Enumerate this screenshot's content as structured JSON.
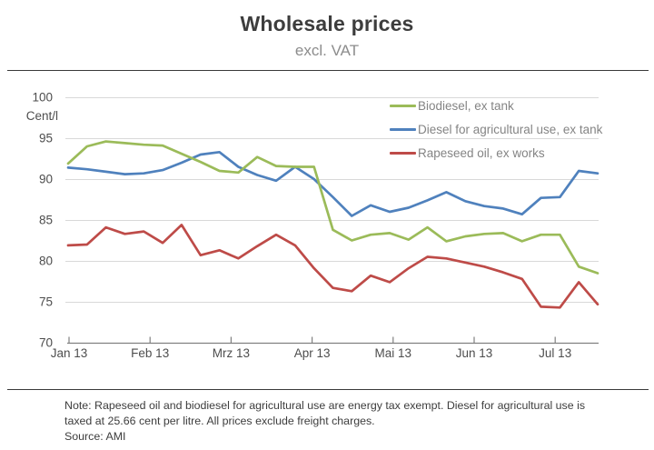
{
  "chart_data": {
    "type": "line",
    "title": "Wholesale prices",
    "subtitle": "excl. VAT",
    "ylabel": "Cent/l",
    "ylim": [
      70,
      100
    ],
    "y_ticks": [
      100,
      95,
      90,
      85,
      80,
      75,
      70
    ],
    "x_tick_labels": [
      "Jan 13",
      "Feb 13",
      "Mrz 13",
      "Apr 13",
      "Mai 13",
      "Jun 13",
      "Jul 13"
    ],
    "x_resolution": "weekly",
    "grid": true,
    "legend_position": "top-right",
    "series": [
      {
        "name": "Biodiesel, ex tank",
        "color": "#9bbb59",
        "values": [
          91.9,
          94.0,
          94.6,
          94.4,
          94.2,
          94.1,
          93.1,
          92.1,
          91.0,
          90.8,
          92.7,
          91.6,
          91.5,
          91.5,
          83.8,
          82.5,
          83.2,
          83.4,
          82.6,
          84.1,
          82.4,
          83.0,
          83.3,
          83.4,
          82.4,
          83.2,
          83.2,
          79.3,
          78.5
        ]
      },
      {
        "name": "Diesel for agricultural use, ex tank",
        "color": "#4f81bd",
        "values": [
          91.4,
          91.2,
          90.9,
          90.6,
          90.7,
          91.1,
          92.0,
          93.0,
          93.3,
          91.5,
          90.5,
          89.8,
          91.5,
          90.0,
          87.8,
          85.5,
          86.8,
          86.0,
          86.5,
          87.4,
          88.4,
          87.3,
          86.7,
          86.4,
          85.7,
          87.7,
          87.8,
          91.0,
          90.7
        ]
      },
      {
        "name": "Rapeseed oil, ex works",
        "color": "#be4b48",
        "values": [
          81.9,
          82.0,
          84.1,
          83.3,
          83.6,
          82.2,
          84.4,
          80.7,
          81.3,
          80.3,
          81.8,
          83.2,
          81.9,
          79.1,
          76.7,
          76.3,
          78.2,
          77.4,
          79.1,
          80.5,
          80.3,
          79.8,
          79.3,
          78.6,
          77.8,
          74.4,
          74.3,
          77.4,
          74.7
        ]
      }
    ]
  },
  "footer": {
    "note": "Note:  Rapeseed oil and biodiesel for agricultural use are energy tax exempt.  Diesel for agricultural use is taxed at 25.66 cent per litre.  All prices exclude freight charges.",
    "source": "Source: AMI"
  }
}
